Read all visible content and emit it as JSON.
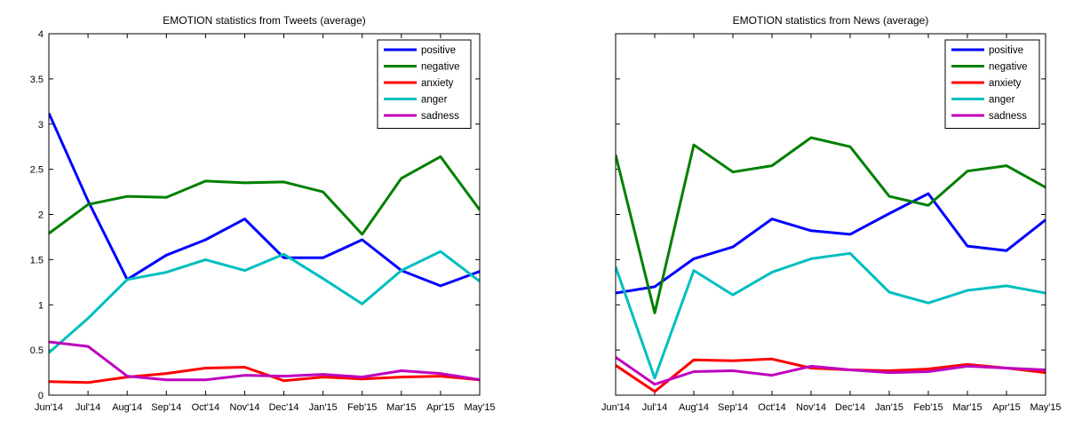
{
  "chart_data": [
    {
      "type": "line",
      "title": "EMOTION statistics from Tweets (average)",
      "xlabel": "",
      "ylabel": "",
      "categories": [
        "Jun'14",
        "Jul'14",
        "Aug'14",
        "Sep'14",
        "Oct'14",
        "Nov'14",
        "Dec'14",
        "Jan'15",
        "Feb'15",
        "Mar'15",
        "Apr'15",
        "May'15"
      ],
      "ylim": [
        0,
        4
      ],
      "yticks": [
        "0",
        "0.5",
        "1",
        "1.5",
        "2",
        "2.5",
        "3",
        "3.5",
        "4"
      ],
      "legend_position": "top-right",
      "series": [
        {
          "name": "positive",
          "color": "#0000ff",
          "values": [
            3.12,
            2.15,
            1.28,
            1.55,
            1.72,
            1.95,
            1.52,
            1.52,
            1.72,
            1.38,
            1.21,
            1.37
          ]
        },
        {
          "name": "negative",
          "color": "#008000",
          "values": [
            1.79,
            2.11,
            2.2,
            2.19,
            2.37,
            2.35,
            2.36,
            2.25,
            1.78,
            2.4,
            2.64,
            2.05
          ]
        },
        {
          "name": "anxiety",
          "color": "#ff0000",
          "values": [
            0.15,
            0.14,
            0.2,
            0.24,
            0.3,
            0.31,
            0.16,
            0.2,
            0.18,
            0.2,
            0.21,
            0.17
          ]
        },
        {
          "name": "anger",
          "color": "#00bfbf",
          "values": [
            0.47,
            0.85,
            1.28,
            1.36,
            1.5,
            1.38,
            1.56,
            1.29,
            1.01,
            1.38,
            1.59,
            1.26
          ]
        },
        {
          "name": "sadness",
          "color": "#bf00bf",
          "values": [
            0.59,
            0.54,
            0.21,
            0.17,
            0.17,
            0.22,
            0.21,
            0.23,
            0.2,
            0.27,
            0.24,
            0.17
          ]
        }
      ]
    },
    {
      "type": "line",
      "title": "EMOTION statistics from News (average)",
      "xlabel": "",
      "ylabel": "",
      "categories": [
        "Jun'14",
        "Jul'14",
        "Aug'14",
        "Sep'14",
        "Oct'14",
        "Nov'14",
        "Dec'14",
        "Jan'15",
        "Feb'15",
        "Mar'15",
        "Apr'15",
        "May'15"
      ],
      "ylim": [
        0,
        4
      ],
      "yticks": [],
      "legend_position": "top-right",
      "series": [
        {
          "name": "positive",
          "color": "#0000ff",
          "values": [
            1.13,
            1.2,
            1.51,
            1.64,
            1.95,
            1.82,
            1.78,
            2.01,
            2.23,
            1.65,
            1.6,
            1.94
          ]
        },
        {
          "name": "negative",
          "color": "#008000",
          "values": [
            2.66,
            0.91,
            2.77,
            2.47,
            2.54,
            2.85,
            2.75,
            2.2,
            2.1,
            2.48,
            2.54,
            2.3
          ]
        },
        {
          "name": "anxiety",
          "color": "#ff0000",
          "values": [
            0.33,
            0.04,
            0.39,
            0.38,
            0.4,
            0.3,
            0.28,
            0.27,
            0.29,
            0.34,
            0.3,
            0.25
          ]
        },
        {
          "name": "anger",
          "color": "#00bfbf",
          "values": [
            1.42,
            0.19,
            1.38,
            1.11,
            1.36,
            1.51,
            1.57,
            1.14,
            1.02,
            1.16,
            1.21,
            1.13
          ]
        },
        {
          "name": "sadness",
          "color": "#bf00bf",
          "values": [
            0.42,
            0.12,
            0.26,
            0.27,
            0.22,
            0.32,
            0.28,
            0.25,
            0.26,
            0.32,
            0.3,
            0.28
          ]
        }
      ]
    }
  ]
}
